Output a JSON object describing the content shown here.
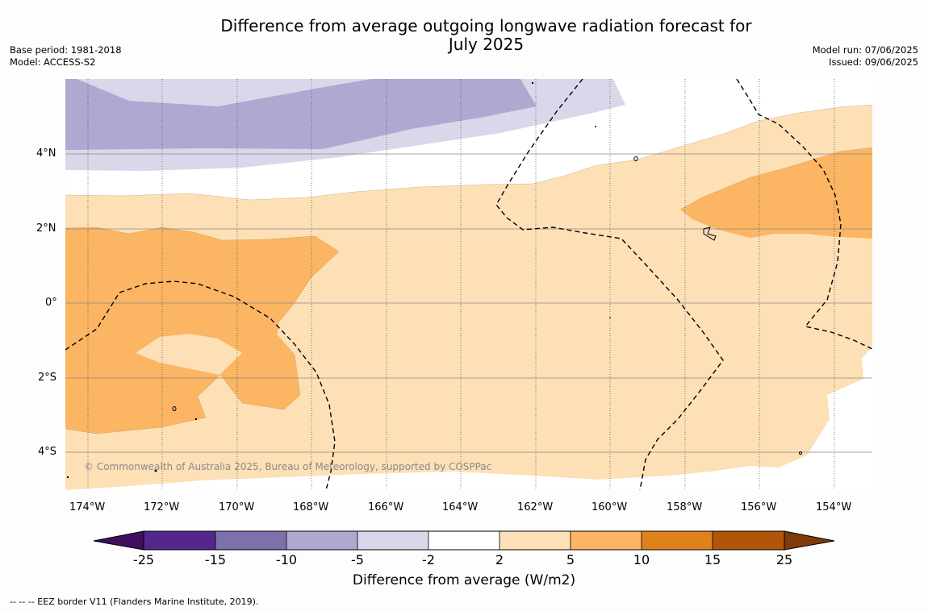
{
  "title_line1": "Difference from average outgoing longwave radiation forecast for",
  "title_line2": "July 2025",
  "base_period": "Base period: 1981-2018",
  "model": "Model: ACCESS-S2",
  "model_run": "Model run: 07/06/2025",
  "issued": "Issued: 09/06/2025",
  "copyright": "© Commonwealth of Australia 2025, Bureau of Meteorology, supported by COSPPac",
  "lat_labels": [
    "4°N",
    "2°N",
    "0°",
    "2°S",
    "4°S"
  ],
  "lon_labels": [
    "174°W",
    "172°W",
    "170°W",
    "168°W",
    "166°W",
    "164°W",
    "162°W",
    "160°W",
    "158°W",
    "156°W",
    "154°W"
  ],
  "colorbar": {
    "ticks": [
      "-25",
      "-15",
      "-10",
      "-5",
      "-2",
      "2",
      "5",
      "10",
      "15",
      "25"
    ],
    "label": "Difference from average (W/m2)",
    "colors": [
      "#3f0f5e",
      "#54288a",
      "#7e70ab",
      "#b0a8d1",
      "#d9d8ea",
      "#ffffff",
      "#fde0b6",
      "#fbb563",
      "#e0821c",
      "#b15509",
      "#7f3b08"
    ]
  },
  "footnote": "--  --  -- EEZ border V11 (Flanders Marine Institute, 2019)."
}
